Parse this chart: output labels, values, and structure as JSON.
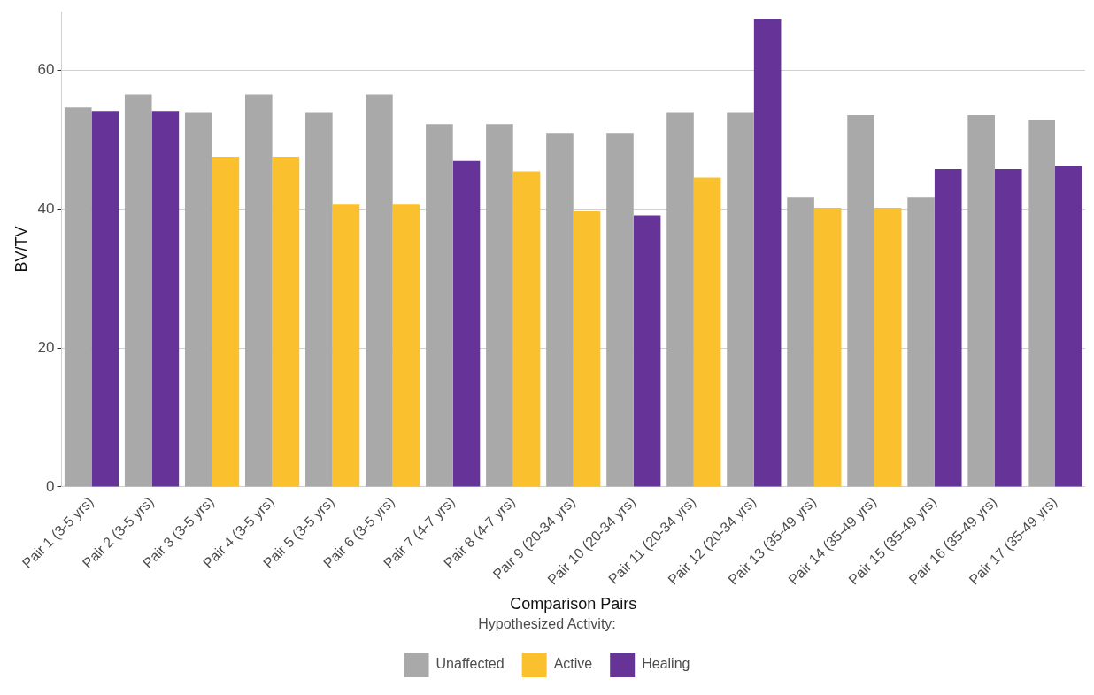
{
  "chart_data": {
    "type": "bar",
    "xlabel": "Comparison Pairs",
    "ylabel": "BV/TV",
    "legend_title": "Hypothesized Activity:",
    "categories": [
      "Pair 1 (3-5 yrs)",
      "Pair 2 (3-5 yrs)",
      "Pair 3 (3-5 yrs)",
      "Pair 4 (3-5 yrs)",
      "Pair 5 (3-5 yrs)",
      "Pair 6 (3-5 yrs)",
      "Pair 7 (4-7 yrs)",
      "Pair 8 (4-7 yrs)",
      "Pair 9 (20-34 yrs)",
      "Pair 10 (20-34 yrs)",
      "Pair 11 (20-34 yrs)",
      "Pair 12 (20-34 yrs)",
      "Pair 13 (35-49 yrs)",
      "Pair 14 (35-49 yrs)",
      "Pair 15 (35-49 yrs)",
      "Pair 16 (35-49 yrs)",
      "Pair 17 (35-49 yrs)"
    ],
    "series": [
      {
        "name": "Unaffected",
        "color": "#a9a9a9",
        "values": [
          54.7,
          56.6,
          53.9,
          56.6,
          53.9,
          56.6,
          52.3,
          52.3,
          51.0,
          51.0,
          53.9,
          53.9,
          41.7,
          53.6,
          41.7,
          53.6,
          52.9
        ]
      },
      {
        "name": "Active",
        "color": "#fbc02d",
        "values": [
          null,
          null,
          47.6,
          47.6,
          40.8,
          40.8,
          null,
          45.5,
          39.8,
          null,
          44.6,
          null,
          40.2,
          40.2,
          null,
          null,
          null
        ]
      },
      {
        "name": "Healing",
        "color": "#663399",
        "values": [
          54.2,
          54.2,
          null,
          null,
          null,
          null,
          47.0,
          null,
          null,
          39.1,
          null,
          67.4,
          null,
          null,
          45.8,
          45.8,
          46.2
        ]
      }
    ],
    "ylim": [
      0,
      68.5
    ],
    "yticks": [
      0,
      20,
      40,
      60
    ],
    "grid": "y",
    "legend": "bottom"
  }
}
